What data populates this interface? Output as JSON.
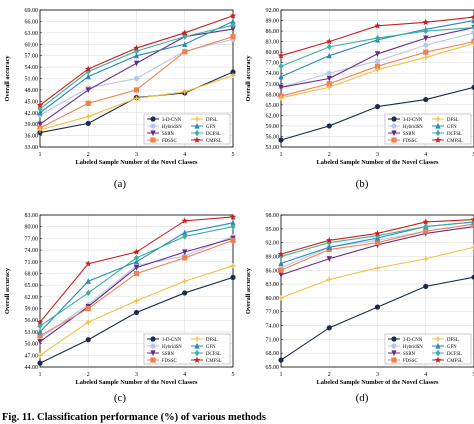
{
  "chart_data": [
    {
      "type": "line",
      "panel": "(a)",
      "xlabel": "Labeled Sample Number of the Novel Classes",
      "ylabel": "Overall accuracy",
      "x": [
        1,
        2,
        3,
        4,
        5
      ],
      "ylim": [
        33.0,
        69.0
      ],
      "yticks": [
        "33.00",
        "36.00",
        "39.00",
        "42.00",
        "45.00",
        "48.00",
        "51.00",
        "54.00",
        "57.00",
        "60.00",
        "63.00",
        "66.00",
        "69.00"
      ],
      "series": [
        {
          "name": "3-D-CNN",
          "values": [
            36.8,
            39.2,
            46.0,
            47.2,
            52.7
          ]
        },
        {
          "name": "HybridSN",
          "values": [
            41.4,
            48.5,
            51.0,
            58.2,
            61.3
          ]
        },
        {
          "name": "SSRN",
          "values": [
            39.0,
            48.0,
            55.0,
            62.0,
            64.0
          ]
        },
        {
          "name": "FDSSC",
          "values": [
            38.0,
            44.5,
            48.0,
            58.0,
            62.0
          ]
        },
        {
          "name": "DFSL",
          "values": [
            37.5,
            41.0,
            45.8,
            47.5,
            51.8
          ]
        },
        {
          "name": "GFN",
          "values": [
            42.0,
            51.5,
            57.0,
            60.0,
            66.0
          ]
        },
        {
          "name": "DCFSL",
          "values": [
            43.0,
            52.8,
            58.2,
            62.0,
            65.0
          ]
        },
        {
          "name": "CMFSL",
          "values": [
            44.0,
            53.5,
            59.0,
            63.0,
            67.5
          ]
        }
      ]
    },
    {
      "type": "line",
      "panel": "(b)",
      "xlabel": "Labeled Sample Number of the Novel Classes",
      "ylabel": "Overall accuracy",
      "x": [
        1,
        2,
        3,
        4,
        5
      ],
      "ylim": [
        53.0,
        92.0
      ],
      "yticks": [
        "53.00",
        "56.00",
        "59.00",
        "62.00",
        "65.00",
        "68.00",
        "71.00",
        "74.00",
        "77.00",
        "80.00",
        "83.00",
        "86.00",
        "89.00",
        "92.00"
      ],
      "series": [
        {
          "name": "3-D-CNN",
          "values": [
            55.0,
            59.0,
            64.5,
            66.5,
            70.0
          ]
        },
        {
          "name": "HybridSN",
          "values": [
            70.0,
            74.0,
            77.5,
            82.0,
            85.5
          ]
        },
        {
          "name": "SSRN",
          "values": [
            70.0,
            72.5,
            79.5,
            84.0,
            87.0
          ]
        },
        {
          "name": "FDSSC",
          "values": [
            67.5,
            71.0,
            76.0,
            80.0,
            83.0
          ]
        },
        {
          "name": "DFSL",
          "values": [
            67.0,
            70.0,
            75.0,
            78.5,
            82.5
          ]
        },
        {
          "name": "GFN",
          "values": [
            73.0,
            79.0,
            83.5,
            86.5,
            89.0
          ]
        },
        {
          "name": "DCFSL",
          "values": [
            76.0,
            81.5,
            84.0,
            86.0,
            87.0
          ]
        },
        {
          "name": "CMFSL",
          "values": [
            79.0,
            83.0,
            87.5,
            88.5,
            90.0
          ]
        }
      ]
    },
    {
      "type": "line",
      "panel": "(c)",
      "xlabel": "Labeled Sample Number of the Novel Classes",
      "ylabel": "Overall accuracy",
      "x": [
        1,
        2,
        3,
        4,
        5
      ],
      "ylim": [
        44.0,
        83.0
      ],
      "yticks": [
        "44.00",
        "47.00",
        "50.00",
        "53.00",
        "56.00",
        "59.00",
        "62.00",
        "65.00",
        "68.00",
        "71.00",
        "74.00",
        "77.00",
        "80.00",
        "83.00"
      ],
      "series": [
        {
          "name": "3-D-CNN",
          "values": [
            45.0,
            51.0,
            58.0,
            63.0,
            67.0
          ]
        },
        {
          "name": "HybridSN",
          "values": [
            51.5,
            60.0,
            70.0,
            72.5,
            77.5
          ]
        },
        {
          "name": "SSRN",
          "values": [
            50.5,
            59.5,
            69.5,
            73.5,
            77.0
          ]
        },
        {
          "name": "FDSSC",
          "values": [
            52.0,
            59.0,
            68.0,
            72.0,
            76.5
          ]
        },
        {
          "name": "DFSL",
          "values": [
            47.0,
            55.5,
            61.0,
            66.0,
            70.0
          ]
        },
        {
          "name": "GFN",
          "values": [
            53.0,
            66.0,
            71.0,
            78.5,
            81.0
          ]
        },
        {
          "name": "DCFSL",
          "values": [
            54.5,
            63.0,
            72.0,
            77.5,
            80.0
          ]
        },
        {
          "name": "CMFSL",
          "values": [
            55.5,
            70.5,
            73.5,
            81.5,
            82.5
          ]
        }
      ]
    },
    {
      "type": "line",
      "panel": "(d)",
      "xlabel": "Labeled Sample Number of the Novel Classes",
      "ylabel": "Overall accuracy",
      "x": [
        1,
        2,
        3,
        4,
        5
      ],
      "ylim": [
        65.0,
        98.0
      ],
      "yticks": [
        "65.00",
        "68.00",
        "71.00",
        "74.00",
        "77.00",
        "80.00",
        "83.00",
        "86.00",
        "89.00",
        "92.00",
        "95.00",
        "98.00"
      ],
      "series": [
        {
          "name": "3-D-CNN",
          "values": [
            66.5,
            73.5,
            78.0,
            82.5,
            84.5
          ]
        },
        {
          "name": "HybridSN",
          "values": [
            86.5,
            91.0,
            92.5,
            94.5,
            96.0
          ]
        },
        {
          "name": "SSRN",
          "values": [
            85.0,
            88.5,
            91.5,
            94.0,
            95.5
          ]
        },
        {
          "name": "FDSSC",
          "values": [
            86.0,
            90.5,
            92.0,
            94.5,
            96.0
          ]
        },
        {
          "name": "DFSL",
          "values": [
            80.0,
            84.0,
            86.5,
            88.5,
            91.0
          ]
        },
        {
          "name": "GFN",
          "values": [
            87.5,
            91.0,
            93.0,
            95.5,
            96.5
          ]
        },
        {
          "name": "DCFSL",
          "values": [
            89.0,
            92.0,
            93.5,
            95.5,
            96.5
          ]
        },
        {
          "name": "CMFSL",
          "values": [
            89.5,
            92.5,
            94.0,
            96.5,
            97.0
          ]
        }
      ]
    }
  ],
  "legend_order": [
    "3-D-CNN",
    "DFSL",
    "HybridSN",
    "GFN",
    "SSRN",
    "DCFSL",
    "FDSSC",
    "CMFSL"
  ],
  "series_style": {
    "3-D-CNN": {
      "color": "#1a2b4c",
      "marker": "circle"
    },
    "HybridSN": {
      "color": "#b8c8e8",
      "marker": "circle"
    },
    "SSRN": {
      "color": "#6a2a8a",
      "marker": "triangle-down"
    },
    "FDSSC": {
      "color": "#f08050",
      "marker": "square"
    },
    "DFSL": {
      "color": "#f0c040",
      "marker": "plus"
    },
    "GFN": {
      "color": "#2a8ab8",
      "marker": "triangle-up"
    },
    "DCFSL": {
      "color": "#3ab0a0",
      "marker": "diamond"
    },
    "CMFSL": {
      "color": "#c82020",
      "marker": "star"
    }
  },
  "caption": "Fig. 11. Classification performance (%) of various methods"
}
